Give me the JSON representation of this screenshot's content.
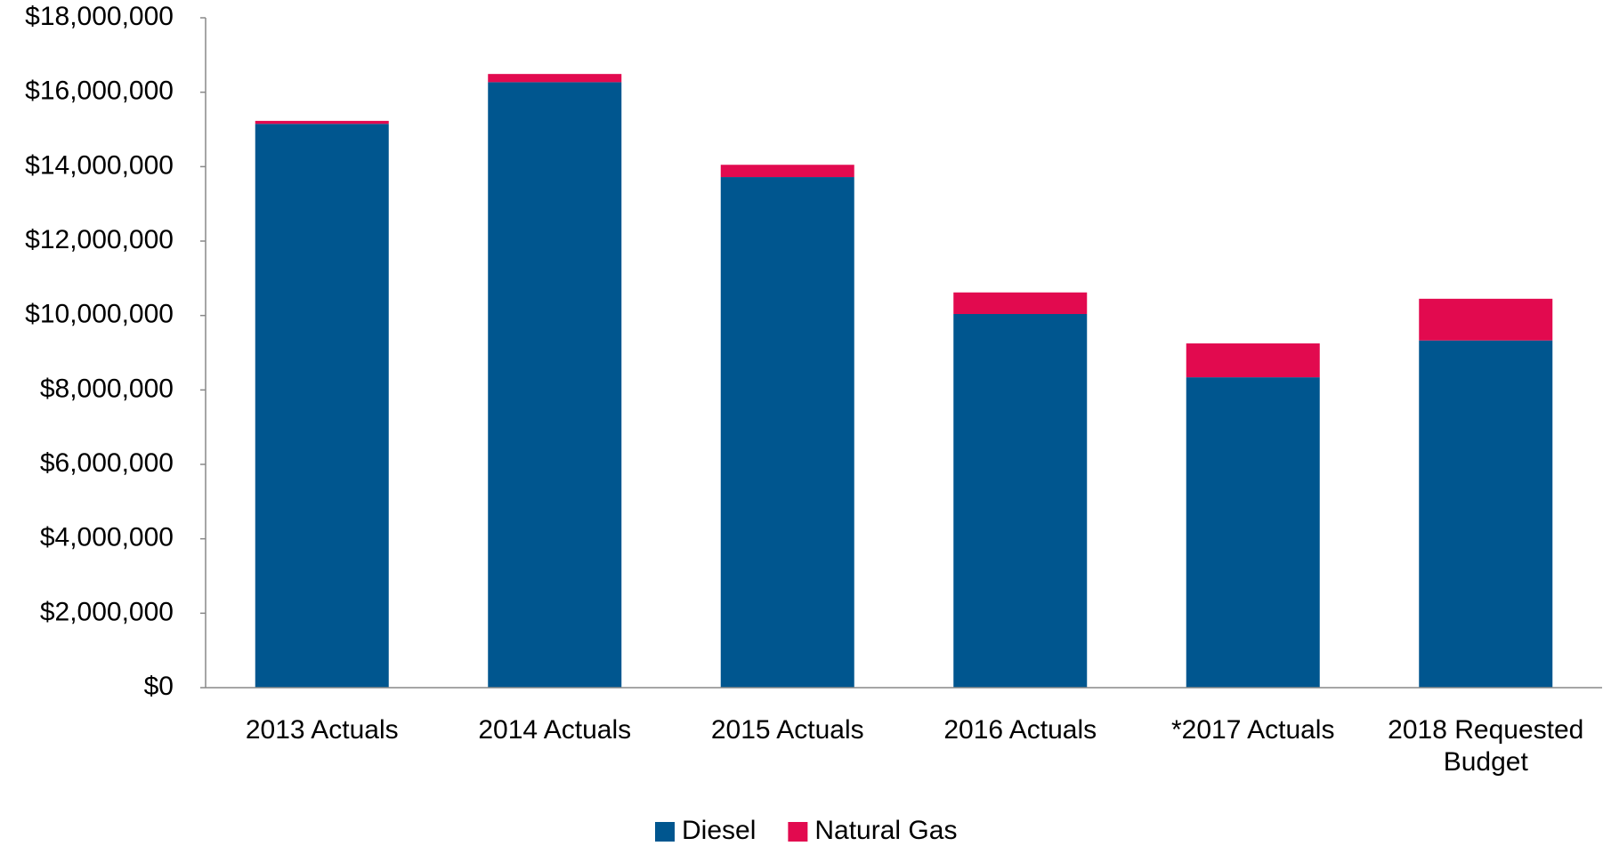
{
  "chart_data": {
    "type": "stacked_bar",
    "categories": [
      "2013 Actuals",
      "2014 Actuals",
      "2015 Actuals",
      "2016 Actuals",
      "*2017 Actuals",
      "2018 Requested Budget"
    ],
    "series": [
      {
        "name": "Diesel",
        "color": "#00568f",
        "values": [
          15150000,
          16270000,
          13720000,
          10040000,
          8340000,
          9330000
        ]
      },
      {
        "name": "Natural Gas",
        "color": "#e20a4f",
        "values": [
          80000,
          220000,
          330000,
          580000,
          910000,
          1120000
        ]
      }
    ],
    "ylim": [
      0,
      18000000
    ],
    "yticks": [
      {
        "value": 0,
        "label": "$0"
      },
      {
        "value": 2000000,
        "label": "$2,000,000"
      },
      {
        "value": 4000000,
        "label": "$4,000,000"
      },
      {
        "value": 6000000,
        "label": "$6,000,000"
      },
      {
        "value": 8000000,
        "label": "$8,000,000"
      },
      {
        "value": 10000000,
        "label": "$10,000,000"
      },
      {
        "value": 12000000,
        "label": "$12,000,000"
      },
      {
        "value": 14000000,
        "label": "$14,000,000"
      },
      {
        "value": 16000000,
        "label": "$16,000,000"
      },
      {
        "value": 18000000,
        "label": "$18,000,000"
      }
    ],
    "grid": false,
    "legend": "bottom"
  }
}
